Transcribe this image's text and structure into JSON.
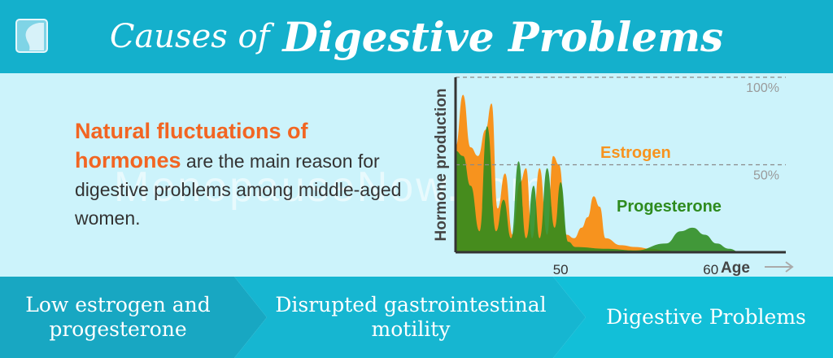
{
  "header": {
    "title_part1": "Causes of",
    "title_part2": "Digestive Problems"
  },
  "description": {
    "highlight": "Natural fluctuations of hormones",
    "rest": "are the main reason for digestive problems among middle-aged women."
  },
  "watermark": "MenopauseNow.com",
  "flow": {
    "steps": [
      {
        "label": "Low estrogen and progesterone"
      },
      {
        "label": "Disrupted gastrointestinal motility"
      },
      {
        "label": "Digestive Problems"
      }
    ]
  },
  "colors": {
    "header_bg": "#14b0cc",
    "panel_bg": "#ccf3fb",
    "highlight": "#f26522",
    "estrogen": "#f7931e",
    "progesterone": "#2e8b1e",
    "flow_step_1": "#18a7c2",
    "flow_step_2": "#16b6d1",
    "flow_step_3": "#12bfd8"
  },
  "chart_data": {
    "type": "area",
    "ylabel": "Hormone production",
    "xlabel": "Age",
    "x_ticks": [
      50,
      60
    ],
    "y_ref_lines": [
      "100%",
      "50%"
    ],
    "x_range": [
      43,
      65
    ],
    "y_range": [
      0,
      100
    ],
    "series": [
      {
        "name": "Estrogen",
        "color": "#f7931e",
        "x": [
          43,
          43.5,
          44,
          44.5,
          45,
          45.4,
          45.8,
          46.3,
          46.8,
          47.3,
          47.7,
          48.1,
          48.6,
          49.1,
          49.5,
          49.9,
          50.4,
          50.9,
          51.4,
          51.8,
          52.2,
          52.6,
          53,
          54,
          55,
          56,
          57,
          58
        ],
        "y": [
          60,
          90,
          60,
          55,
          70,
          85,
          25,
          45,
          10,
          40,
          48,
          8,
          48,
          10,
          55,
          50,
          10,
          8,
          14,
          20,
          32,
          26,
          8,
          4,
          3,
          2,
          1,
          0
        ]
      },
      {
        "name": "Progesterone",
        "color": "#2e8b1e",
        "x": [
          43,
          43.5,
          44,
          44.6,
          45.1,
          45.7,
          46.2,
          46.7,
          47.2,
          47.7,
          48.2,
          48.6,
          49.1,
          49.6,
          50,
          50.5,
          51,
          53,
          55,
          57,
          58,
          58.8,
          59.6,
          60.4,
          61.2,
          62
        ],
        "y": [
          58,
          55,
          38,
          12,
          72,
          12,
          30,
          8,
          52,
          8,
          38,
          8,
          48,
          14,
          40,
          6,
          3,
          2,
          1,
          5,
          12,
          14,
          10,
          5,
          2,
          0
        ]
      }
    ]
  }
}
